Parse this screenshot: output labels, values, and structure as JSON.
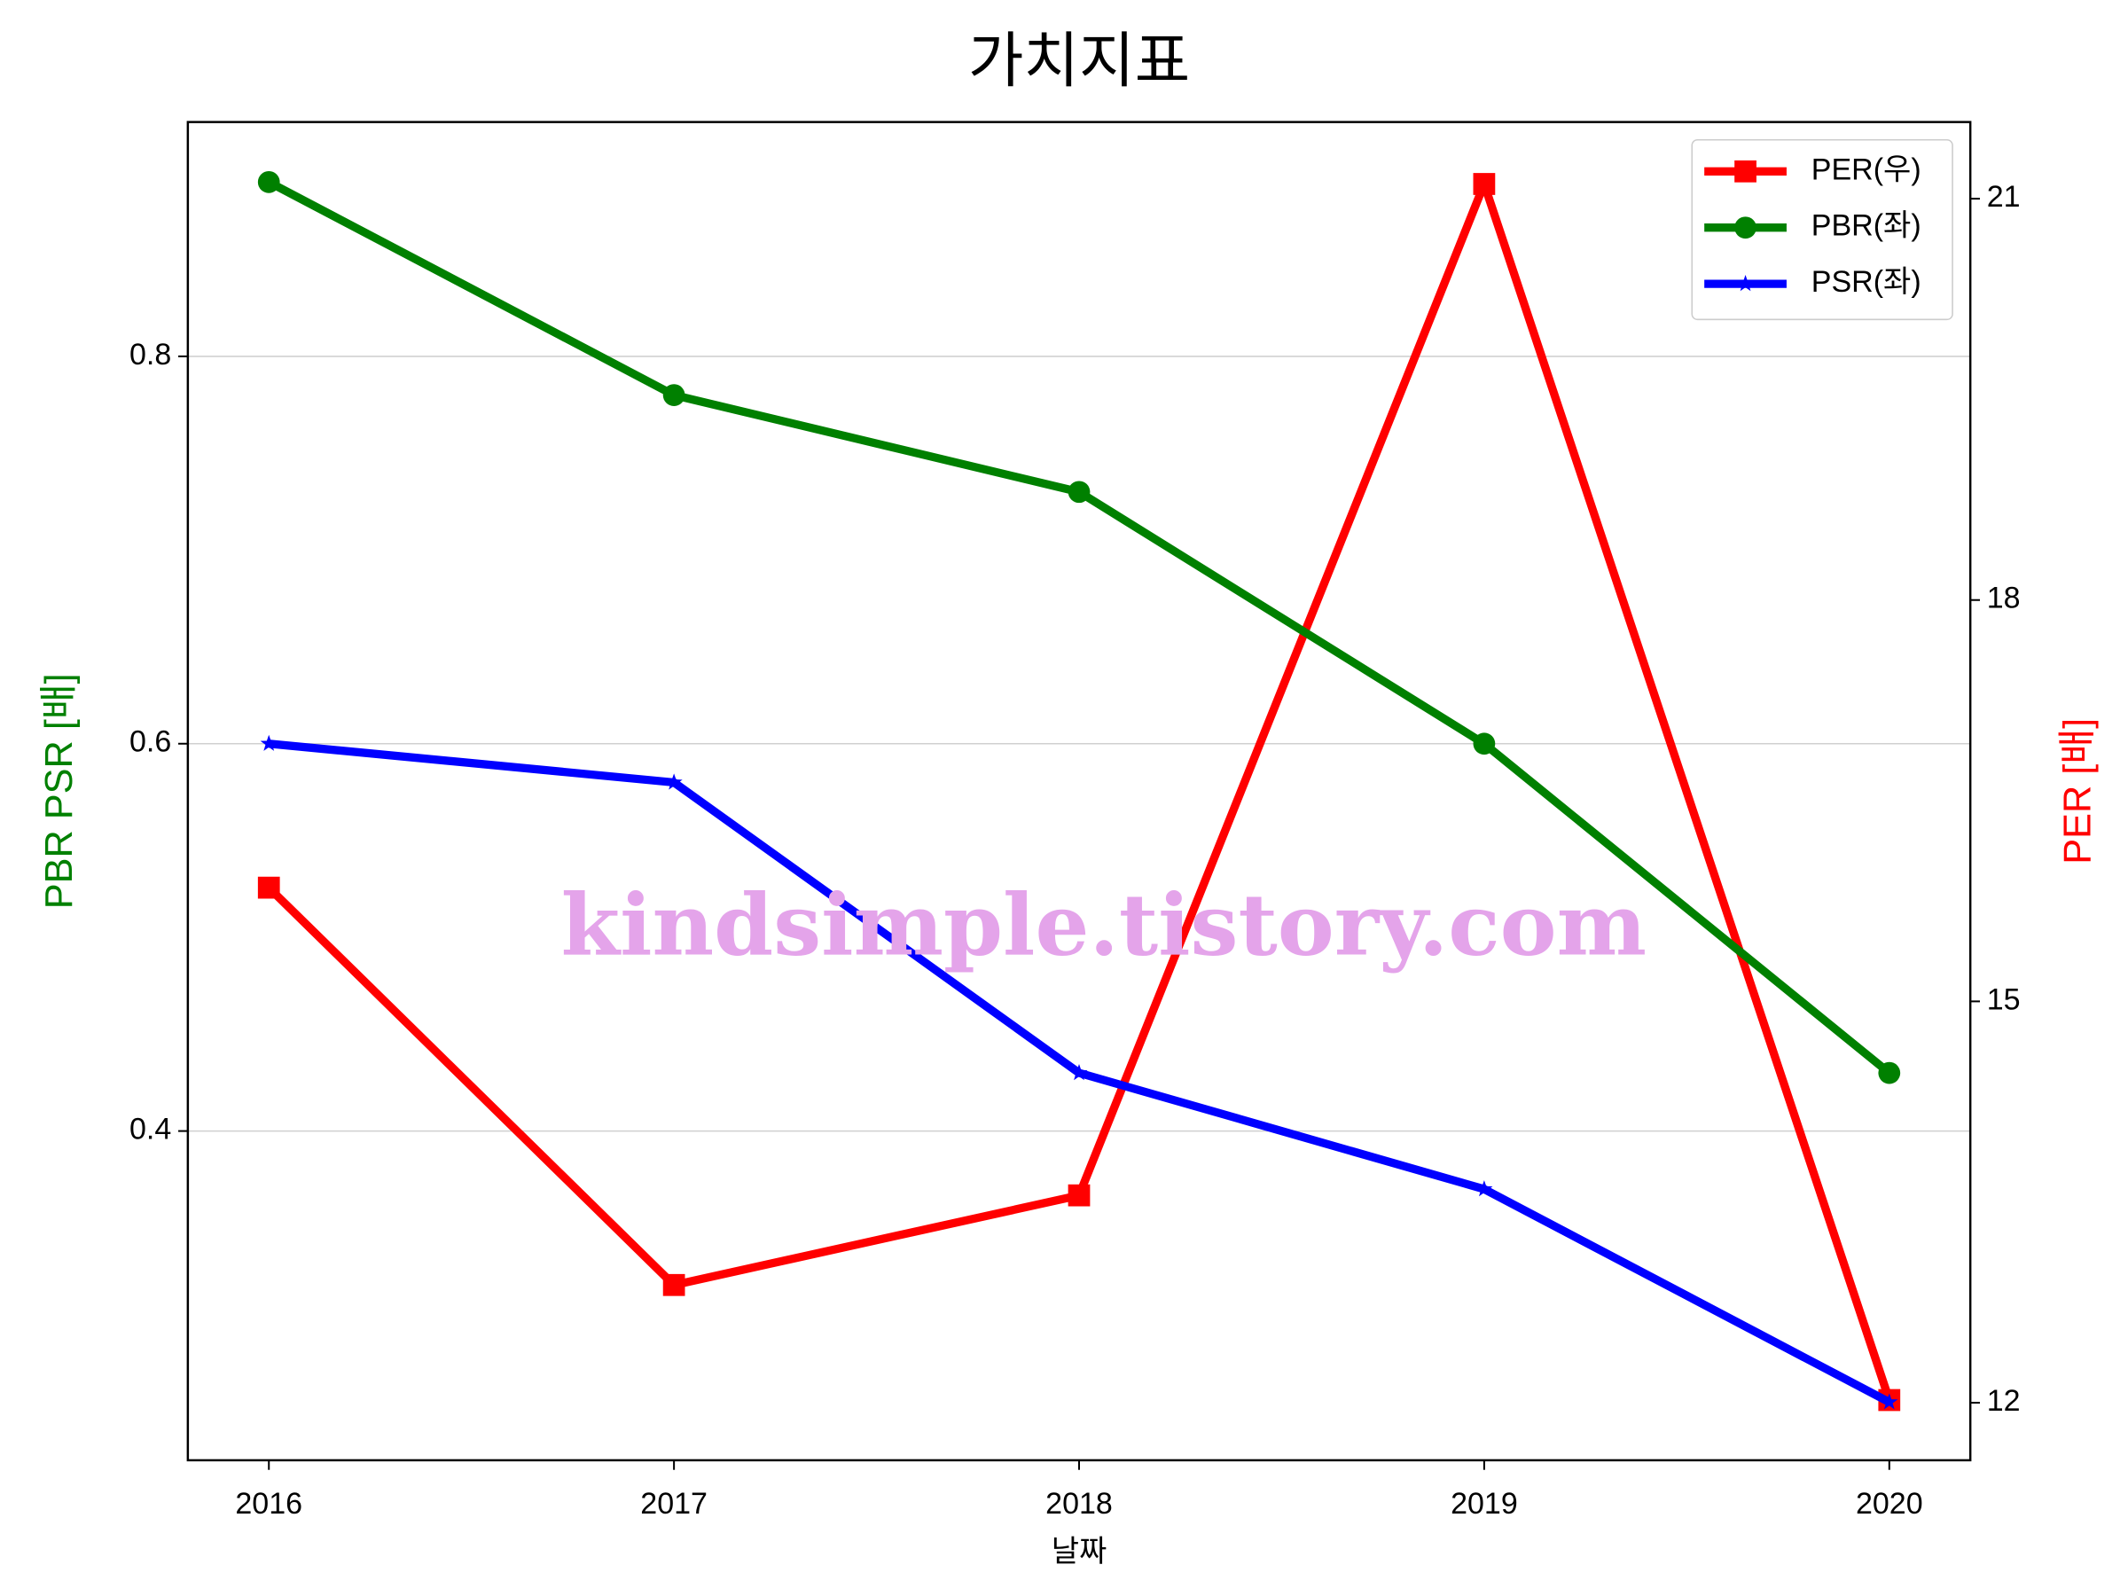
{
  "chart_data": {
    "type": "line",
    "title": "가치지표",
    "xlabel": "날짜",
    "ylabel": "PBR PSR [배]",
    "y2label": "PER [배]",
    "ylabel_color": "green",
    "y2label_color": "red",
    "x": [
      2016,
      2017,
      2018,
      2019,
      2020
    ],
    "xlim": [
      2015.8,
      2020.2
    ],
    "xticks": [
      2016,
      2017,
      2018,
      2019,
      2020
    ],
    "ylim": [
      0.23,
      0.921
    ],
    "yticks": [
      0.4,
      0.6,
      0.8
    ],
    "y2lim": [
      11.57,
      21.573
    ],
    "y2ticks": [
      12,
      15,
      18,
      21
    ],
    "grid": true,
    "legend": "upper right",
    "series": [
      {
        "name": "PER(우)",
        "color": "red",
        "marker": "square",
        "axis": "y2",
        "values": [
          15.85,
          12.88,
          13.55,
          21.11,
          12.02
        ]
      },
      {
        "name": "PBR(좌)",
        "color": "green",
        "marker": "circle",
        "values": [
          0.89,
          0.78,
          0.73,
          0.6,
          0.43
        ]
      },
      {
        "name": "PSR(좌)",
        "color": "blue",
        "marker": "star",
        "values": [
          0.6,
          0.58,
          0.43,
          0.37,
          0.26
        ]
      }
    ],
    "watermark": "kindsimple.tistory.com"
  }
}
